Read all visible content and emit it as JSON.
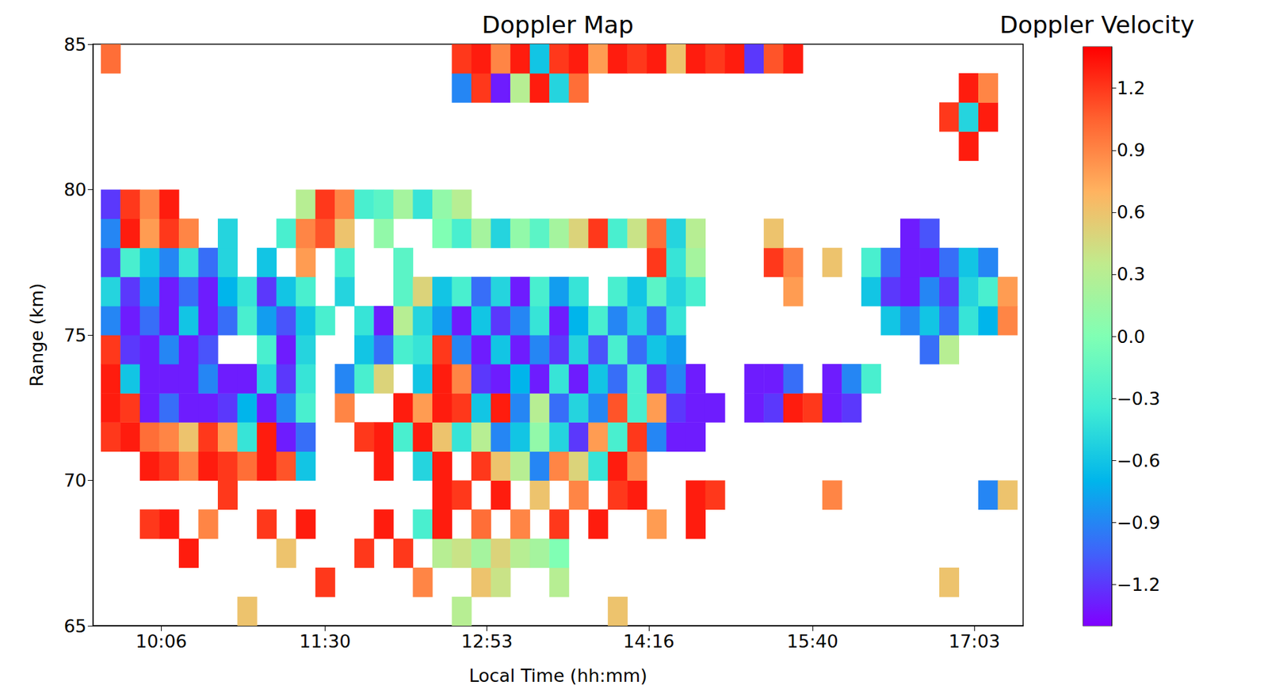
{
  "chart_data": {
    "type": "heatmap",
    "title": "Doppler Map",
    "x_label": "Local Time (hh:mm)",
    "y_label": "Range (km)",
    "xlim": [
      571,
      1048
    ],
    "xticks": [
      {
        "value": 606,
        "label": "10:06"
      },
      {
        "value": 690,
        "label": "11:30"
      },
      {
        "value": 773,
        "label": "12:53"
      },
      {
        "value": 856,
        "label": "14:16"
      },
      {
        "value": 940,
        "label": "15:40"
      },
      {
        "value": 1023,
        "label": "17:03"
      }
    ],
    "ylim": [
      65,
      85
    ],
    "yticks": [
      65,
      70,
      75,
      80,
      85
    ],
    "x": [
      580,
      590,
      600,
      610,
      620,
      630,
      640,
      650,
      660,
      670,
      680,
      690,
      700,
      710,
      720,
      730,
      740,
      750,
      760,
      770,
      780,
      790,
      800,
      810,
      820,
      830,
      840,
      850,
      860,
      870,
      880,
      890,
      900,
      910,
      920,
      930,
      940,
      950,
      960,
      970,
      980,
      990,
      1000,
      1010,
      1020,
      1030,
      1040
    ],
    "y": [
      65.5,
      66.5,
      67.5,
      68.5,
      69.5,
      70.5,
      71.5,
      72.5,
      73.5,
      74.5,
      75.5,
      76.5,
      77.5,
      78.5,
      79.5,
      80.5,
      81.5,
      82.5,
      83.5,
      84.5
    ],
    "cells": [
      [
        null,
        null,
        null,
        null,
        null,
        null,
        null,
        0.6,
        null,
        null,
        null,
        null,
        null,
        null,
        null,
        null,
        null,
        null,
        0.3,
        null,
        null,
        null,
        null,
        null,
        null,
        null,
        0.6,
        null,
        null,
        null,
        null,
        null,
        null,
        null,
        null,
        null,
        null,
        null,
        null,
        null,
        null,
        null,
        null,
        null,
        null,
        null,
        null
      ],
      [
        null,
        null,
        null,
        null,
        null,
        null,
        null,
        null,
        null,
        null,
        null,
        1.2,
        null,
        null,
        null,
        null,
        0.9,
        null,
        null,
        0.6,
        0.4,
        null,
        null,
        0.3,
        null,
        null,
        null,
        null,
        null,
        null,
        null,
        null,
        null,
        null,
        null,
        null,
        null,
        null,
        null,
        null,
        null,
        null,
        null,
        0.6,
        null,
        null,
        null
      ],
      [
        null,
        null,
        null,
        null,
        1.3,
        null,
        null,
        null,
        null,
        0.6,
        null,
        null,
        null,
        1.2,
        null,
        1.2,
        null,
        0.3,
        0.4,
        0.2,
        0.5,
        0.3,
        0.2,
        0.0,
        null,
        null,
        null,
        null,
        null,
        null,
        null,
        null,
        null,
        null,
        null,
        null,
        null,
        null,
        null,
        null,
        null,
        null,
        null,
        null,
        null,
        null,
        null
      ],
      [
        null,
        null,
        1.2,
        1.3,
        null,
        0.9,
        null,
        null,
        1.2,
        null,
        1.3,
        null,
        null,
        null,
        1.3,
        null,
        -0.3,
        1.3,
        null,
        1.0,
        null,
        0.9,
        null,
        1.2,
        null,
        1.3,
        null,
        null,
        0.8,
        null,
        1.3,
        null,
        null,
        null,
        null,
        null,
        null,
        null,
        null,
        null,
        null,
        null,
        null,
        null,
        null,
        null,
        null
      ],
      [
        null,
        null,
        null,
        null,
        null,
        null,
        1.2,
        null,
        null,
        null,
        null,
        null,
        null,
        null,
        null,
        null,
        null,
        1.3,
        1.2,
        null,
        1.3,
        null,
        0.6,
        null,
        0.9,
        null,
        1.2,
        1.3,
        null,
        null,
        1.3,
        1.2,
        null,
        null,
        null,
        null,
        null,
        0.9,
        null,
        null,
        null,
        null,
        null,
        null,
        null,
        -0.9,
        0.6
      ],
      [
        null,
        null,
        1.3,
        1.2,
        0.9,
        1.3,
        1.2,
        1.0,
        1.3,
        1.1,
        -0.6,
        null,
        null,
        null,
        1.3,
        null,
        -0.5,
        1.3,
        null,
        1.2,
        0.6,
        0.3,
        -0.9,
        0.9,
        0.5,
        -0.4,
        1.3,
        0.9,
        null,
        null,
        null,
        null,
        null,
        null,
        null,
        null,
        null,
        null,
        null,
        null,
        null,
        null,
        null,
        null,
        null,
        null,
        null
      ],
      [
        1.2,
        1.3,
        1.0,
        0.9,
        0.6,
        1.2,
        0.8,
        -0.4,
        1.3,
        -1.3,
        -1.0,
        null,
        null,
        1.2,
        1.3,
        -0.3,
        1.3,
        0.6,
        -0.4,
        0.3,
        -0.9,
        -0.6,
        0.1,
        -0.5,
        -1.2,
        0.8,
        -0.3,
        1.2,
        -0.9,
        -1.3,
        -1.3,
        null,
        null,
        null,
        null,
        null,
        null,
        null,
        null,
        null,
        null,
        null,
        null,
        null,
        null,
        null,
        null
      ],
      [
        1.3,
        1.2,
        -1.3,
        -1.0,
        -1.3,
        -1.3,
        -1.2,
        -0.7,
        -1.3,
        -0.9,
        -0.3,
        null,
        0.9,
        null,
        null,
        1.3,
        0.8,
        1.3,
        1.2,
        -0.6,
        1.3,
        -0.9,
        0.3,
        -1.0,
        -0.5,
        -0.9,
        1.1,
        -0.3,
        0.8,
        -1.2,
        -1.3,
        -1.3,
        null,
        -1.3,
        -1.2,
        1.3,
        1.2,
        -1.3,
        -1.2,
        null,
        null,
        null,
        null,
        null,
        null,
        null,
        null
      ],
      [
        1.3,
        -0.6,
        -1.3,
        -1.3,
        -1.3,
        -0.9,
        -1.3,
        -1.3,
        -0.5,
        -1.2,
        -0.4,
        null,
        -0.9,
        -0.3,
        0.5,
        null,
        -0.6,
        1.3,
        0.9,
        -1.2,
        -1.3,
        -0.7,
        -1.3,
        -0.4,
        -1.3,
        -0.6,
        -1.0,
        -0.3,
        -1.2,
        -0.9,
        -1.3,
        null,
        null,
        -1.3,
        -1.3,
        -1.0,
        null,
        -1.3,
        -0.9,
        -0.3,
        null,
        null,
        null,
        null,
        null,
        null,
        null
      ],
      [
        1.2,
        -1.2,
        -1.3,
        -0.9,
        -1.3,
        -1.1,
        null,
        null,
        -0.3,
        -1.3,
        -0.5,
        null,
        null,
        -0.6,
        -1.0,
        -0.3,
        -0.4,
        1.2,
        -0.9,
        -1.3,
        -0.6,
        -1.3,
        -0.9,
        -1.2,
        -0.5,
        -1.1,
        -0.3,
        -1.0,
        -0.6,
        -0.8,
        null,
        null,
        null,
        null,
        null,
        null,
        null,
        null,
        null,
        null,
        null,
        null,
        -1.0,
        0.3,
        null,
        null,
        null
      ],
      [
        -0.9,
        -1.3,
        -1.0,
        -1.3,
        -0.6,
        -1.3,
        -1.0,
        -0.3,
        -0.8,
        -1.1,
        -0.6,
        -0.3,
        null,
        -0.4,
        -1.3,
        0.3,
        -0.5,
        -0.8,
        -1.3,
        -0.6,
        -1.2,
        -0.9,
        -0.4,
        -1.3,
        -0.7,
        -0.3,
        -0.9,
        -0.5,
        -1.0,
        -0.4,
        null,
        null,
        null,
        null,
        null,
        null,
        null,
        null,
        null,
        null,
        -0.6,
        -0.9,
        -0.6,
        -1.0,
        -0.4,
        -0.7,
        0.9
      ],
      [
        -0.5,
        -1.2,
        -0.8,
        -1.3,
        -1.0,
        -1.3,
        -0.7,
        -0.4,
        -1.2,
        -0.6,
        -0.3,
        null,
        -0.5,
        null,
        null,
        -0.2,
        0.5,
        -0.6,
        -0.3,
        -1.0,
        -0.5,
        -1.3,
        -0.3,
        -0.8,
        -0.4,
        null,
        -0.3,
        -0.6,
        -0.2,
        -0.5,
        -0.3,
        null,
        null,
        null,
        null,
        0.8,
        null,
        null,
        null,
        -0.6,
        -1.2,
        -1.3,
        -0.9,
        -1.2,
        -0.5,
        -0.3,
        0.8
      ],
      [
        -1.2,
        -0.3,
        -0.6,
        -0.9,
        -0.4,
        -1.0,
        -0.5,
        null,
        -0.6,
        null,
        0.8,
        null,
        -0.3,
        null,
        null,
        -0.2,
        null,
        null,
        null,
        null,
        null,
        null,
        null,
        null,
        null,
        null,
        null,
        null,
        1.2,
        -0.4,
        0.2,
        null,
        null,
        null,
        1.2,
        0.9,
        null,
        0.6,
        null,
        -0.3,
        -1.0,
        -1.3,
        -1.3,
        -1.0,
        -0.6,
        -0.9,
        null
      ],
      [
        -0.9,
        1.3,
        0.8,
        1.2,
        0.9,
        null,
        -0.5,
        null,
        null,
        -0.3,
        0.9,
        1.1,
        0.6,
        null,
        0.1,
        null,
        null,
        0.0,
        -0.3,
        0.2,
        -0.5,
        0.1,
        -0.2,
        0.2,
        0.5,
        1.2,
        -0.3,
        0.4,
        1.0,
        -0.5,
        0.3,
        null,
        null,
        null,
        0.6,
        null,
        null,
        null,
        null,
        null,
        null,
        -1.3,
        -1.1,
        null,
        null,
        null,
        null
      ],
      [
        -1.2,
        1.2,
        0.9,
        1.3,
        null,
        null,
        null,
        null,
        null,
        null,
        0.3,
        1.2,
        0.9,
        -0.3,
        -0.2,
        0.2,
        -0.4,
        0.1,
        0.3,
        null,
        null,
        null,
        null,
        null,
        null,
        null,
        null,
        null,
        null,
        null,
        null,
        null,
        null,
        null,
        null,
        null,
        null,
        null,
        null,
        null,
        null,
        null,
        null,
        null,
        null,
        null,
        null
      ],
      [
        null,
        null,
        null,
        null,
        null,
        null,
        null,
        null,
        null,
        null,
        null,
        null,
        null,
        null,
        null,
        null,
        null,
        null,
        null,
        null,
        null,
        null,
        null,
        null,
        null,
        null,
        null,
        null,
        null,
        null,
        null,
        null,
        null,
        null,
        null,
        null,
        null,
        null,
        null,
        null,
        null,
        null,
        null,
        null,
        null,
        null,
        null
      ],
      [
        null,
        null,
        null,
        null,
        null,
        null,
        null,
        null,
        null,
        null,
        null,
        null,
        null,
        null,
        null,
        null,
        null,
        null,
        null,
        null,
        null,
        null,
        null,
        null,
        null,
        null,
        null,
        null,
        null,
        null,
        null,
        null,
        null,
        null,
        null,
        null,
        null,
        null,
        null,
        null,
        null,
        null,
        null,
        null,
        1.3,
        null,
        null
      ],
      [
        null,
        null,
        null,
        null,
        null,
        null,
        null,
        null,
        null,
        null,
        null,
        null,
        null,
        null,
        null,
        null,
        null,
        null,
        null,
        null,
        null,
        null,
        null,
        null,
        null,
        null,
        null,
        null,
        null,
        null,
        null,
        null,
        null,
        null,
        null,
        null,
        null,
        null,
        null,
        null,
        null,
        null,
        null,
        1.2,
        -0.5,
        1.3,
        null
      ],
      [
        null,
        null,
        null,
        null,
        null,
        null,
        null,
        null,
        null,
        null,
        null,
        null,
        null,
        null,
        null,
        null,
        null,
        null,
        -0.9,
        1.2,
        -1.3,
        0.3,
        1.3,
        -0.5,
        1.0,
        null,
        null,
        null,
        null,
        null,
        null,
        null,
        null,
        null,
        null,
        null,
        null,
        null,
        null,
        null,
        null,
        null,
        null,
        null,
        1.3,
        0.9,
        null
      ],
      [
        1.0,
        null,
        null,
        null,
        null,
        null,
        null,
        null,
        null,
        null,
        null,
        null,
        null,
        null,
        null,
        null,
        null,
        null,
        1.2,
        1.3,
        0.9,
        1.3,
        -0.6,
        1.2,
        1.3,
        0.8,
        1.3,
        1.2,
        1.3,
        0.6,
        1.3,
        1.2,
        1.3,
        -1.2,
        1.1,
        1.3,
        null,
        null,
        null,
        null,
        null,
        null,
        null,
        null,
        null,
        null,
        null
      ]
    ],
    "colorbar": {
      "label": "Doppler Velocity",
      "range": [
        -1.4,
        1.4
      ],
      "ticks": [
        {
          "value": -1.2,
          "label": "−1.2"
        },
        {
          "value": -0.9,
          "label": "−0.9"
        },
        {
          "value": -0.6,
          "label": "−0.6"
        },
        {
          "value": -0.3,
          "label": "−0.3"
        },
        {
          "value": 0,
          "label": "0.0"
        },
        0.3,
        0.6,
        0.9,
        1.2
      ]
    }
  }
}
